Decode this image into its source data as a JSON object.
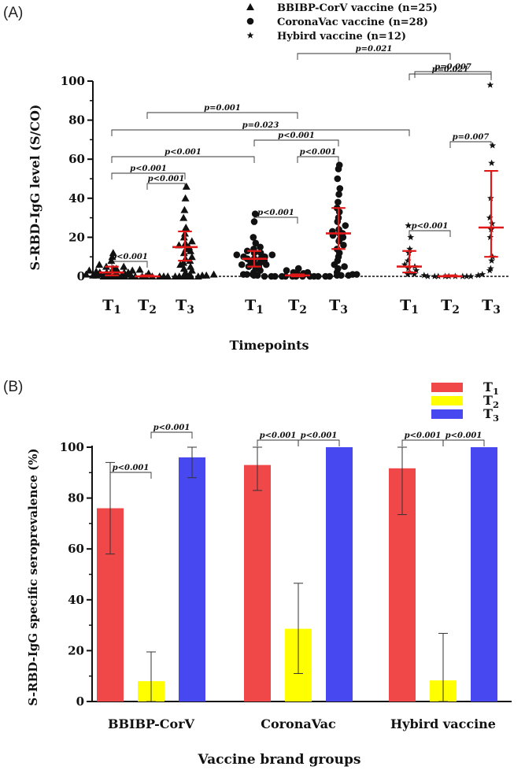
{
  "chart_data": [
    {
      "panel": "(A)",
      "type": "scatter",
      "ylabel": "S-RBD-IgG level (S/CO)",
      "xlabel": "Timepoints",
      "ylim": [
        0,
        100
      ],
      "yticks": [
        "0",
        "20",
        "40",
        "60",
        "80",
        "100"
      ],
      "timepoints": [
        "T1",
        "T2",
        "T3"
      ],
      "series": [
        {
          "name": "BBIBP-CorV vaccine (n=25)",
          "marker": "triangle",
          "groups": [
            {
              "timepoint": "T1",
              "median": 2,
              "q1": 0.5,
              "q3": 5,
              "points": [
                0,
                0,
                0.5,
                0.5,
                1,
                1,
                1,
                1.5,
                1.5,
                2,
                2,
                2,
                2,
                2.5,
                3,
                3,
                3.5,
                4,
                4,
                5,
                5,
                6,
                8,
                10,
                12
              ]
            },
            {
              "timepoint": "T2",
              "median": 0,
              "q1": 0,
              "q3": 0.5,
              "points": [
                0,
                0,
                0,
                0,
                0,
                0,
                0,
                0,
                0,
                0,
                0,
                0,
                0,
                0,
                0,
                0,
                0,
                0,
                0.5,
                0.5,
                0.5,
                0.5,
                1,
                1,
                1.5
              ]
            },
            {
              "timepoint": "T3",
              "median": 15,
              "q1": 8,
              "q3": 23,
              "points": [
                0,
                1,
                2,
                3,
                4,
                5,
                6,
                7,
                8,
                9,
                10,
                12,
                13,
                14,
                15,
                16,
                17,
                18,
                20,
                22,
                25,
                30,
                34,
                40,
                46
              ]
            }
          ]
        },
        {
          "name": "CoronaVac vaccine (n=28)",
          "marker": "circle",
          "groups": [
            {
              "timepoint": "T1",
              "median": 9,
              "q1": 5,
              "q3": 13,
              "points": [
                1,
                2,
                3,
                4,
                5,
                5,
                6,
                6,
                7,
                7,
                8,
                8,
                9,
                9,
                9,
                10,
                10,
                11,
                11,
                12,
                12,
                13,
                14,
                15,
                17,
                20,
                28,
                32
              ]
            },
            {
              "timepoint": "T2",
              "median": 0.5,
              "q1": 0,
              "q3": 1,
              "points": [
                0,
                0,
                0,
                0,
                0,
                0,
                0,
                0,
                0,
                0,
                0,
                0,
                0,
                0.5,
                0.5,
                0.5,
                0.5,
                0.5,
                1,
                1,
                1,
                1,
                1.5,
                1.5,
                2,
                2,
                3,
                4
              ]
            },
            {
              "timepoint": "T3",
              "median": 22,
              "q1": 14,
              "q3": 35,
              "points": [
                2,
                4,
                5,
                6,
                8,
                10,
                12,
                14,
                16,
                18,
                19,
                20,
                21,
                22,
                22,
                23,
                24,
                26,
                28,
                30,
                33,
                35,
                38,
                42,
                45,
                50,
                55,
                57
              ]
            }
          ]
        },
        {
          "name": "Hybird vaccine (n=12)",
          "marker": "star",
          "groups": [
            {
              "timepoint": "T1",
              "median": 5,
              "q1": 2,
              "q3": 13,
              "points": [
                1,
                1,
                2,
                3,
                4,
                5,
                6,
                8,
                12,
                14,
                20,
                26
              ]
            },
            {
              "timepoint": "T2",
              "median": 0,
              "q1": 0,
              "q3": 0.5,
              "points": [
                0,
                0,
                0,
                0,
                0,
                0,
                0,
                0,
                0,
                0.5,
                0.5,
                1
              ]
            },
            {
              "timepoint": "T3",
              "median": 25,
              "q1": 10,
              "q3": 54,
              "points": [
                3,
                4,
                8,
                10,
                20,
                24,
                27,
                30,
                40,
                58,
                67,
                98
              ]
            }
          ]
        }
      ],
      "annotations": [
        "p<0.001",
        "p<0.001",
        "p<0.001",
        "p<0.001",
        "p=0.001",
        "p=0.023",
        "p<0.001",
        "p<0.001",
        "p<0.001",
        "p<0.001",
        "p=0.007",
        "p=0.021"
      ]
    },
    {
      "panel": "(B)",
      "type": "bar",
      "ylabel": "S-RBD-IgG specific seroprevalence (%)",
      "xlabel": "Vaccine brand groups",
      "ylim": [
        0,
        100
      ],
      "yticks": [
        "0",
        "20",
        "40",
        "60",
        "80",
        "100"
      ],
      "categories": [
        "BBIBP-CorV",
        "CoronaVac",
        "Hybird vaccine"
      ],
      "series": [
        {
          "name": "T1",
          "color": "#f04848",
          "values": [
            76,
            93,
            91.7
          ],
          "err_low": [
            58,
            83,
            73.5
          ],
          "err_high": [
            94,
            100,
            100
          ]
        },
        {
          "name": "T2",
          "color": "#ffff00",
          "values": [
            8,
            28.6,
            8.3
          ],
          "err_low": [
            0,
            11,
            0
          ],
          "err_high": [
            19.5,
            46.5,
            26.8
          ]
        },
        {
          "name": "T3",
          "color": "#4848f0",
          "values": [
            96,
            100,
            100
          ],
          "err_low": [
            88,
            100,
            100
          ],
          "err_high": [
            100,
            100,
            100
          ]
        }
      ],
      "annotations": [
        "p<0.001",
        "p<0.001",
        "p<0.001",
        "p<0.001",
        "p<0.001",
        "p<0.001"
      ]
    }
  ]
}
